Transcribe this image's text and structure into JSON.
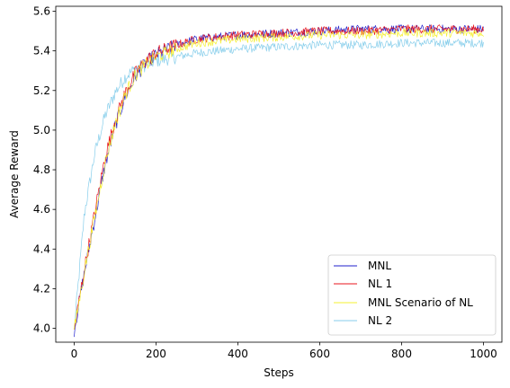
{
  "chart_data": {
    "type": "line",
    "xlabel": "Steps",
    "ylabel": "Average Reward",
    "xlim": [
      -45,
      1045
    ],
    "ylim": [
      3.93,
      5.625
    ],
    "xticks": [
      0,
      200,
      400,
      600,
      800,
      1000
    ],
    "yticks": [
      4.0,
      4.2,
      4.4,
      4.6,
      4.8,
      5.0,
      5.2,
      5.4,
      5.6
    ],
    "ytick_labels": [
      "4.0",
      "4.2",
      "4.4",
      "4.6",
      "4.8",
      "5.0",
      "5.2",
      "5.4",
      "5.6"
    ],
    "grid": false,
    "legend_position": "lower-right",
    "x": [
      0,
      25,
      50,
      75,
      100,
      125,
      150,
      175,
      200,
      250,
      300,
      400,
      500,
      600,
      700,
      800,
      900,
      1000
    ],
    "series": [
      {
        "name": "MNL",
        "color": "#1f1fcc",
        "values": [
          3.99,
          4.28,
          4.55,
          4.82,
          5.02,
          5.17,
          5.27,
          5.34,
          5.38,
          5.43,
          5.46,
          5.48,
          5.49,
          5.5,
          5.51,
          5.51,
          5.51,
          5.51
        ]
      },
      {
        "name": "NL 1",
        "color": "#e8141c",
        "values": [
          3.99,
          4.3,
          4.58,
          4.86,
          5.05,
          5.19,
          5.29,
          5.35,
          5.39,
          5.43,
          5.46,
          5.48,
          5.49,
          5.5,
          5.5,
          5.51,
          5.51,
          5.51
        ]
      },
      {
        "name": "MNL Scenario of NL",
        "color": "#f5f032",
        "values": [
          3.99,
          4.29,
          4.56,
          4.83,
          5.03,
          5.18,
          5.28,
          5.33,
          5.37,
          5.41,
          5.44,
          5.46,
          5.47,
          5.48,
          5.48,
          5.49,
          5.49,
          5.49
        ]
      },
      {
        "name": "NL 2",
        "color": "#87ceeb",
        "values": [
          3.99,
          4.58,
          4.88,
          5.07,
          5.19,
          5.27,
          5.31,
          5.33,
          5.35,
          5.37,
          5.39,
          5.41,
          5.42,
          5.43,
          5.43,
          5.44,
          5.44,
          5.44
        ]
      }
    ],
    "noise": 0.022
  }
}
